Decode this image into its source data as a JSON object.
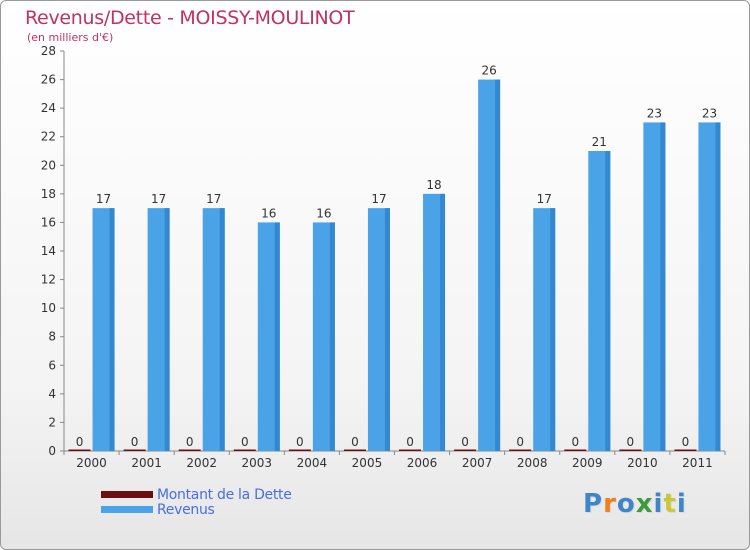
{
  "header": {
    "title": "Revenus/Dette - MOISSY-MOULINOT",
    "subtitle": "(en milliers d'€)"
  },
  "legend": [
    {
      "label": "Montant de la Dette",
      "color": "#6b0f12"
    },
    {
      "label": "Revenus",
      "color": "#4aa3e6"
    }
  ],
  "logo": {
    "letters": [
      "P",
      "r",
      "o",
      "x",
      "i",
      "t",
      "i"
    ],
    "colors": [
      "#3f86c8",
      "#ee7f1c",
      "#3f86c8",
      "#3a9c3a",
      "#3f86c8",
      "#c8c83a",
      "#3f86c8"
    ]
  },
  "chart_data": {
    "type": "bar",
    "title": "Revenus/Dette - MOISSY-MOULINOT",
    "ylabel": "(en milliers d'€)",
    "xlabel": "",
    "ylim": [
      0,
      28
    ],
    "yticks": [
      0,
      2,
      4,
      6,
      8,
      10,
      12,
      14,
      16,
      18,
      20,
      22,
      24,
      26,
      28
    ],
    "categories": [
      "2000",
      "2001",
      "2002",
      "2003",
      "2004",
      "2005",
      "2006",
      "2007",
      "2008",
      "2009",
      "2010",
      "2011"
    ],
    "series": [
      {
        "name": "Montant de la Dette",
        "color": "#6b0f12",
        "values": [
          0,
          0,
          0,
          0,
          0,
          0,
          0,
          0,
          0,
          0,
          0,
          0
        ]
      },
      {
        "name": "Revenus",
        "color": "#4aa3e6",
        "values": [
          17,
          17,
          17,
          16,
          16,
          17,
          18,
          26,
          17,
          21,
          23,
          23
        ]
      }
    ],
    "grid": false,
    "legend_position": "bottom-left"
  }
}
